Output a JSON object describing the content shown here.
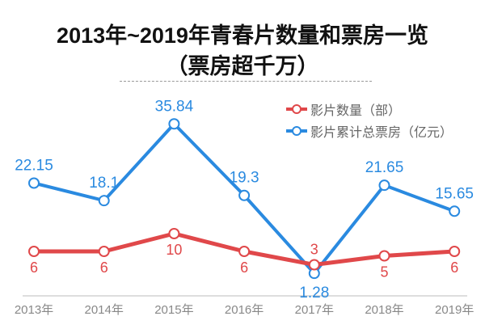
{
  "title": "2013年~2019年青春片数量和票房一览",
  "subtitle": "（票房超千万）",
  "chart_data": {
    "type": "line",
    "title": "2013年~2019年青春片数量和票房一览",
    "subtitle": "（票房超千万）",
    "categories": [
      "2013年",
      "2014年",
      "2015年",
      "2016年",
      "2017年",
      "2018年",
      "2019年"
    ],
    "series": [
      {
        "name": "影片数量（部）",
        "color": "#e0484a",
        "values": [
          6,
          6,
          10,
          6,
          3,
          5,
          6
        ]
      },
      {
        "name": "影片累计总票房（亿元）",
        "color": "#2a8ae0",
        "values": [
          22.15,
          18.1,
          35.84,
          19.3,
          1.28,
          21.65,
          15.65
        ]
      }
    ],
    "value_labels": {
      "影片数量（部）": [
        "6",
        "6",
        "10",
        "6",
        "3",
        "5",
        "6"
      ],
      "影片累计总票房（亿元）": [
        "22.15",
        "18.1",
        "35.84",
        "19.3",
        "1.28",
        "21.65",
        "15.65"
      ]
    },
    "grid": false,
    "legend": "top-right"
  }
}
